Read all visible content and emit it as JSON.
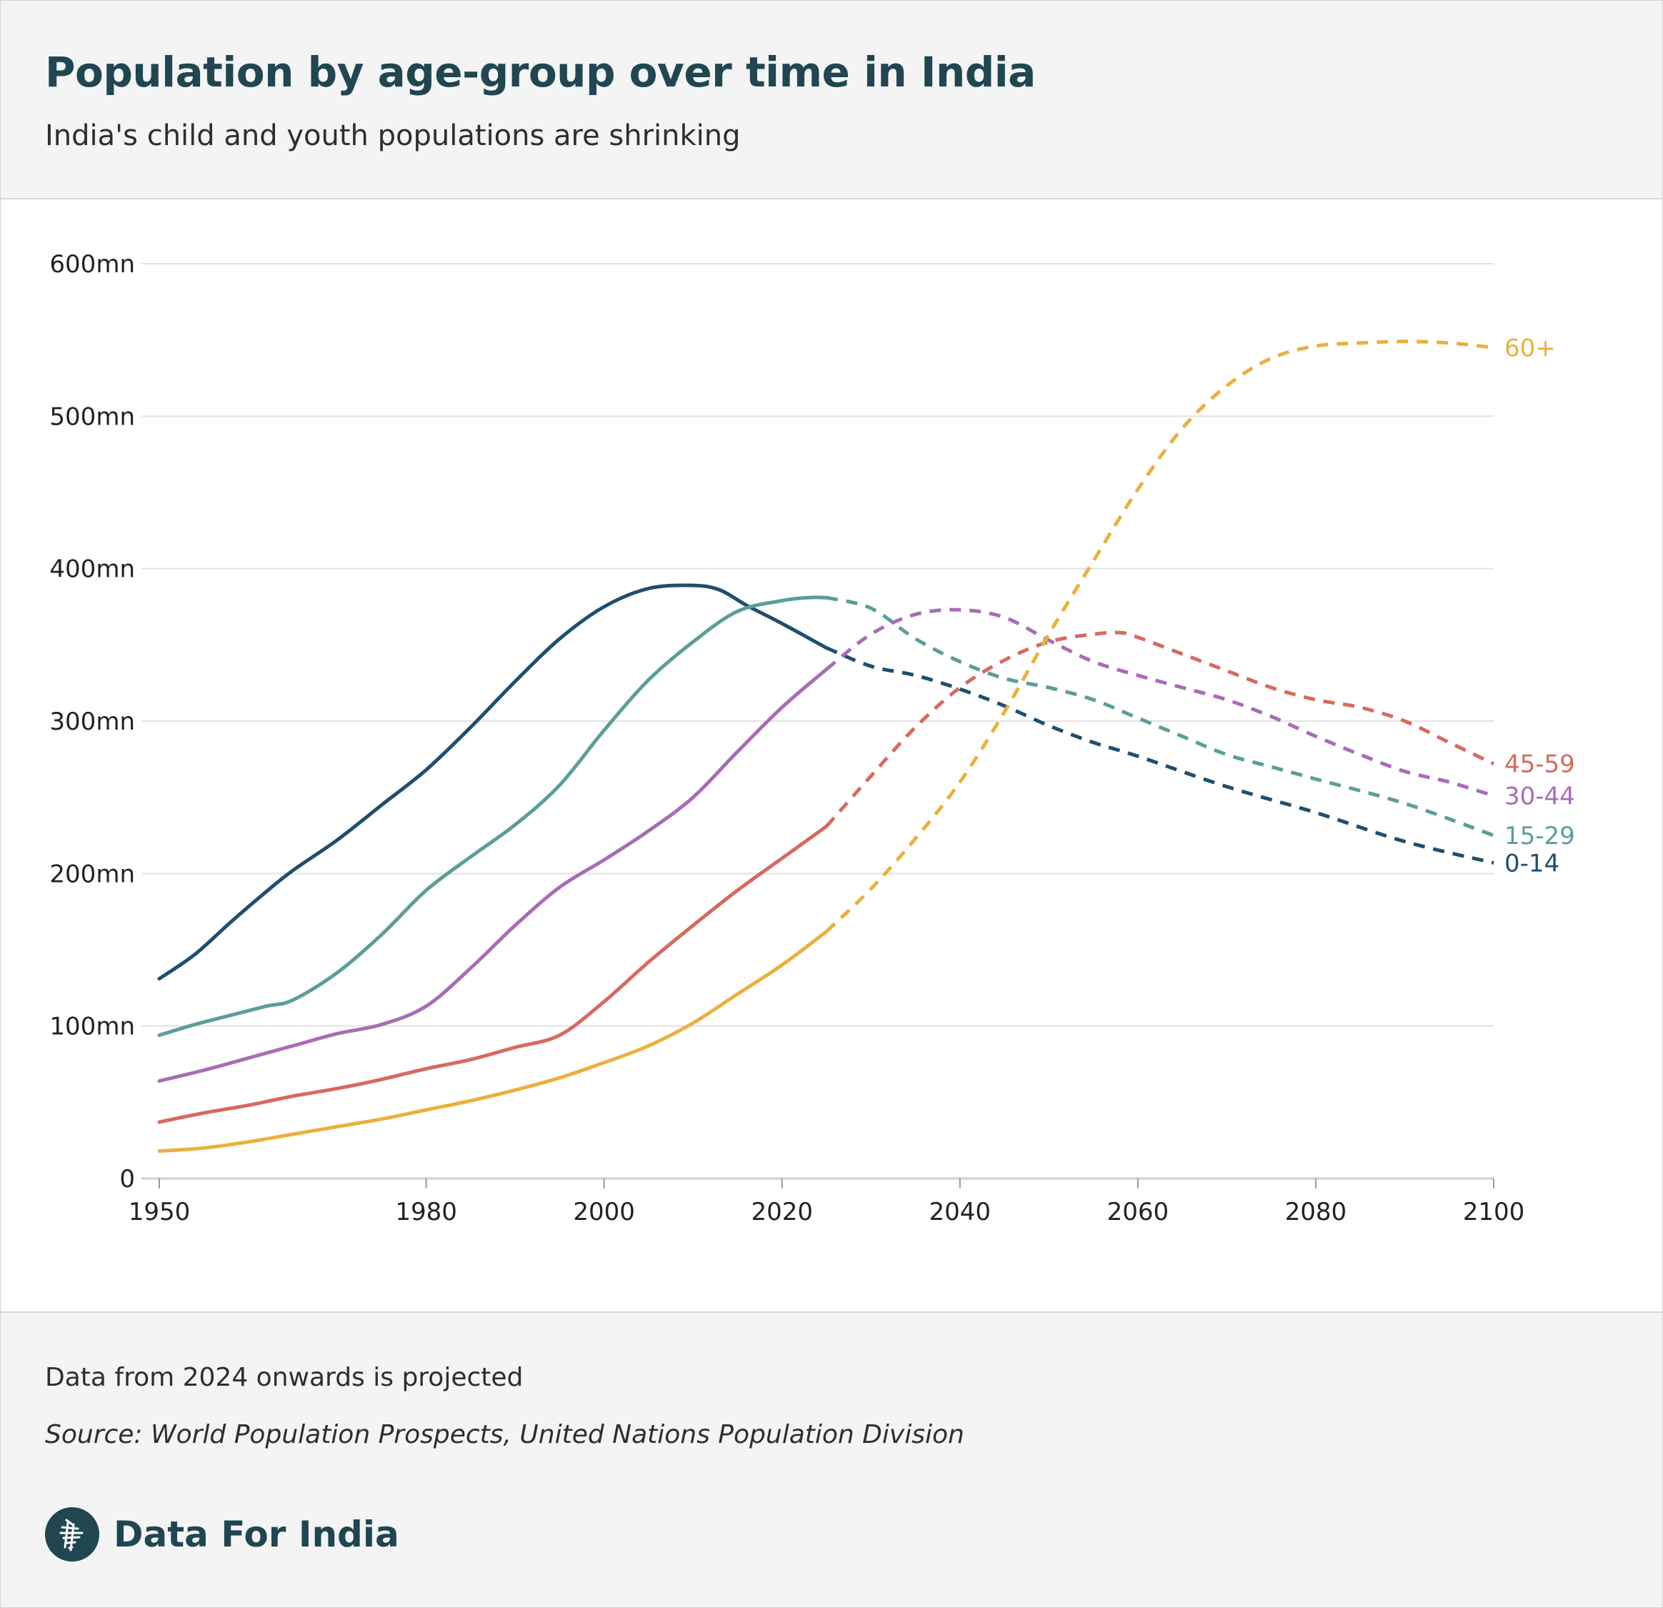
{
  "header": {
    "title": "Population by age-group over time in India",
    "subtitle": "India's child and youth populations are shrinking"
  },
  "footer": {
    "note": "Data from 2024 onwards is projected",
    "source": "Source: World Population Prospects, United Nations Population Division",
    "brand": "Data For India"
  },
  "colors": {
    "0-14": "#1f4e6e",
    "15-29": "#5b9e99",
    "30-44": "#a86cb5",
    "45-59": "#d66a5e",
    "60+": "#ebb03d"
  },
  "chart_data": {
    "type": "line",
    "title": "Population by age-group over time in India",
    "subtitle": "India's child and youth populations are shrinking",
    "xlabel": "",
    "ylabel": "",
    "xlim": [
      1950,
      2100
    ],
    "ylim": [
      0,
      600
    ],
    "x_ticks": [
      1950,
      1980,
      2000,
      2020,
      2040,
      2060,
      2080,
      2100
    ],
    "y_ticks": [
      {
        "value": 0,
        "label": "0"
      },
      {
        "value": 100,
        "label": "100mn"
      },
      {
        "value": 200,
        "label": "200mn"
      },
      {
        "value": 300,
        "label": "300mn"
      },
      {
        "value": 400,
        "label": "400mn"
      },
      {
        "value": 500,
        "label": "500mn"
      },
      {
        "value": 600,
        "label": "600mn"
      }
    ],
    "grid": "horizontal",
    "projection_start": 2025,
    "legend": "direct-labels-right",
    "series": [
      {
        "name": "0-14",
        "x": [
          1950,
          1954,
          1958,
          1962,
          1965,
          1970,
          1975,
          1980,
          1985,
          1990,
          1995,
          2000,
          2005,
          2010,
          2013,
          2016,
          2020,
          2025,
          2030,
          2035,
          2040,
          2045,
          2050,
          2055,
          2060,
          2070,
          2080,
          2090,
          2100
        ],
        "y": [
          131,
          147,
          168,
          188,
          202,
          222,
          245,
          268,
          296,
          326,
          354,
          375,
          387,
          389,
          386,
          376,
          364,
          348,
          336,
          330,
          321,
          310,
          297,
          286,
          277,
          257,
          240,
          221,
          207
        ]
      },
      {
        "name": "15-29",
        "x": [
          1950,
          1954,
          1958,
          1962,
          1965,
          1970,
          1975,
          1980,
          1985,
          1990,
          1995,
          2000,
          2005,
          2010,
          2015,
          2020,
          2023,
          2025,
          2030,
          2035,
          2040,
          2045,
          2050,
          2055,
          2060,
          2065,
          2070,
          2075,
          2080,
          2090,
          2100
        ],
        "y": [
          94,
          101,
          107,
          113,
          117,
          135,
          160,
          189,
          211,
          232,
          258,
          294,
          327,
          352,
          372,
          379,
          381,
          381,
          374,
          354,
          339,
          328,
          322,
          314,
          302,
          290,
          278,
          270,
          262,
          246,
          225
        ]
      },
      {
        "name": "30-44",
        "x": [
          1950,
          1955,
          1960,
          1965,
          1970,
          1975,
          1980,
          1985,
          1990,
          1995,
          2000,
          2005,
          2010,
          2015,
          2020,
          2025,
          2030,
          2035,
          2040,
          2045,
          2050,
          2055,
          2060,
          2065,
          2070,
          2075,
          2080,
          2085,
          2090,
          2095,
          2100
        ],
        "y": [
          64,
          71,
          79,
          87,
          95,
          101,
          113,
          138,
          166,
          191,
          209,
          228,
          250,
          280,
          309,
          334,
          357,
          370,
          373,
          368,
          353,
          339,
          330,
          322,
          314,
          303,
          290,
          278,
          267,
          260,
          251
        ]
      },
      {
        "name": "45-59",
        "x": [
          1950,
          1955,
          1960,
          1965,
          1970,
          1975,
          1980,
          1985,
          1990,
          1995,
          2000,
          2005,
          2010,
          2015,
          2020,
          2025,
          2030,
          2035,
          2040,
          2045,
          2050,
          2055,
          2058,
          2060,
          2065,
          2070,
          2075,
          2080,
          2085,
          2090,
          2095,
          2100
        ],
        "y": [
          37,
          43,
          48,
          54,
          59,
          65,
          72,
          78,
          86,
          94,
          116,
          142,
          166,
          189,
          210,
          231,
          264,
          296,
          322,
          340,
          352,
          357,
          358,
          355,
          344,
          333,
          322,
          314,
          309,
          300,
          286,
          272
        ]
      },
      {
        "name": "60+",
        "x": [
          1950,
          1955,
          1960,
          1965,
          1970,
          1975,
          1980,
          1985,
          1990,
          1995,
          2000,
          2005,
          2010,
          2015,
          2020,
          2025,
          2030,
          2035,
          2040,
          2045,
          2050,
          2055,
          2060,
          2065,
          2070,
          2075,
          2080,
          2085,
          2090,
          2095,
          2100
        ],
        "y": [
          18,
          20,
          24,
          29,
          34,
          39,
          45,
          51,
          58,
          66,
          76,
          87,
          102,
          121,
          140,
          162,
          190,
          223,
          260,
          306,
          357,
          405,
          452,
          492,
          520,
          538,
          546,
          548,
          549,
          548,
          545
        ]
      }
    ]
  }
}
